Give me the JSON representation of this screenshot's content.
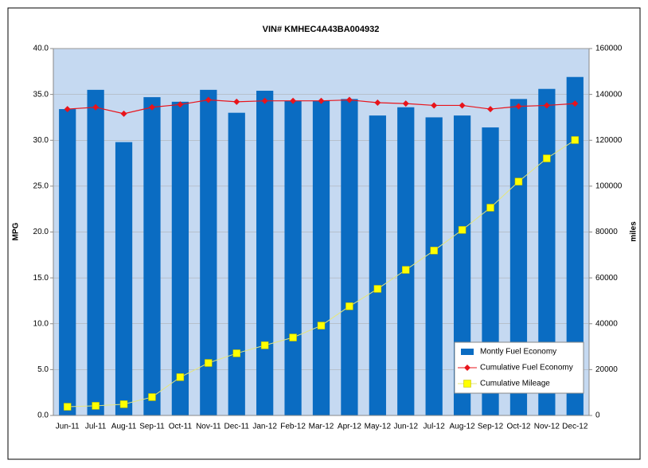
{
  "chart_data": {
    "type": "bar",
    "title": "VIN# KMHEC4A43BA004932",
    "categories": [
      "Jun-11",
      "Jul-11",
      "Aug-11",
      "Sep-11",
      "Oct-11",
      "Nov-11",
      "Dec-11",
      "Jan-12",
      "Feb-12",
      "Mar-12",
      "Apr-12",
      "May-12",
      "Jun-12",
      "Jul-12",
      "Aug-12",
      "Sep-12",
      "Oct-12",
      "Nov-12",
      "Dec-12"
    ],
    "series": [
      {
        "name": "Montly Fuel Economy",
        "type": "bar",
        "color": "#0a6cc2",
        "values": [
          33.4,
          35.5,
          29.8,
          34.7,
          34.2,
          35.5,
          33.0,
          35.4,
          34.3,
          34.3,
          34.5,
          32.7,
          33.6,
          32.5,
          32.7,
          31.4,
          34.5,
          35.6,
          36.9
        ]
      },
      {
        "name": "Cumulative Fuel Economy",
        "type": "line",
        "color": "#e8141b",
        "values": [
          33.4,
          33.6,
          32.9,
          33.6,
          33.9,
          34.4,
          34.2,
          34.3,
          34.3,
          34.3,
          34.4,
          34.1,
          34.0,
          33.8,
          33.8,
          33.4,
          33.7,
          33.8,
          34.0
        ]
      },
      {
        "name": "Cumulative Mileage",
        "type": "line",
        "axis": "y2",
        "color": "#ffff00",
        "values": [
          3800,
          4200,
          4900,
          8000,
          16700,
          22900,
          27100,
          30600,
          34000,
          39200,
          47600,
          55200,
          63500,
          71900,
          80900,
          90600,
          102000,
          112100,
          120100
        ]
      }
    ],
    "ylabel": "MPG",
    "y2label": "miles",
    "ylim": [
      0,
      40
    ],
    "yticks": [
      {
        "value": 0,
        "label": "0.0"
      },
      {
        "value": 5,
        "label": "5.0"
      },
      {
        "value": 10,
        "label": "10.0"
      },
      {
        "value": 15,
        "label": "15.0"
      },
      {
        "value": 20,
        "label": "20.0"
      },
      {
        "value": 25,
        "label": "25.0"
      },
      {
        "value": 30,
        "label": "30.0"
      },
      {
        "value": 35,
        "label": "35.0"
      },
      {
        "value": 40,
        "label": "40.0"
      }
    ],
    "y2lim": [
      0,
      160000
    ],
    "y2ticks": [
      0,
      20000,
      40000,
      60000,
      80000,
      100000,
      120000,
      140000,
      160000
    ],
    "grid": true,
    "legend": "lower right"
  }
}
